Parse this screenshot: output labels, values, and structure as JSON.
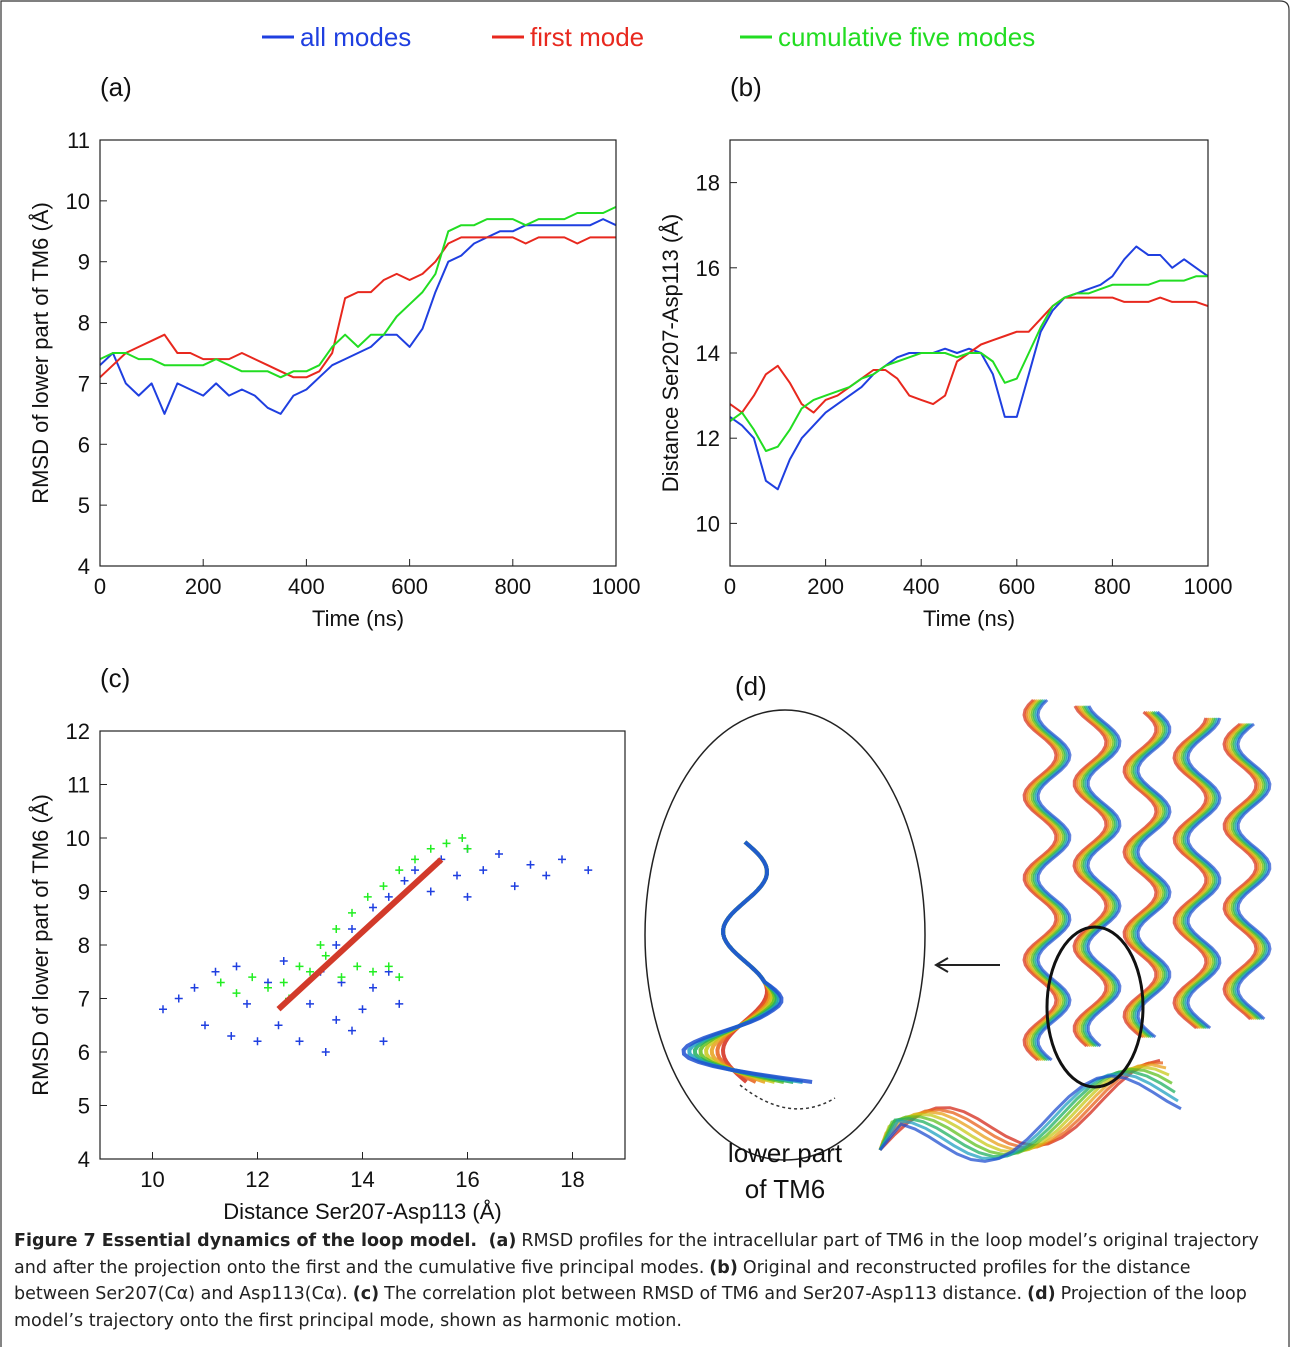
{
  "chart_data": [
    {
      "type": "line",
      "label": "(a)",
      "x_label": "Time (ns)",
      "y_label": "RMSD of lower part of TM6 (Å)",
      "x": [
        0,
        25,
        50,
        75,
        100,
        125,
        150,
        175,
        200,
        225,
        250,
        275,
        300,
        325,
        350,
        375,
        400,
        425,
        450,
        475,
        500,
        525,
        550,
        575,
        600,
        625,
        650,
        675,
        700,
        725,
        750,
        775,
        800,
        825,
        850,
        875,
        900,
        925,
        950,
        975,
        1000
      ],
      "xlim": [
        0,
        1000
      ],
      "xticks": [
        0,
        200,
        400,
        600,
        800,
        1000
      ],
      "ylim": [
        4,
        11
      ],
      "yticks": [
        4,
        5,
        6,
        7,
        8,
        9,
        10,
        11
      ],
      "series": [
        {
          "name": "all modes",
          "color": "#1f3fe0",
          "values": [
            7.3,
            7.5,
            7.0,
            6.8,
            7.0,
            6.5,
            7.0,
            6.9,
            6.8,
            7.0,
            6.8,
            6.9,
            6.8,
            6.6,
            6.5,
            6.8,
            6.9,
            7.1,
            7.3,
            7.4,
            7.5,
            7.6,
            7.8,
            7.8,
            7.6,
            7.9,
            8.5,
            9.0,
            9.1,
            9.3,
            9.4,
            9.5,
            9.5,
            9.6,
            9.6,
            9.6,
            9.6,
            9.6,
            9.6,
            9.7,
            9.6
          ]
        },
        {
          "name": "first mode",
          "color": "#e8281e",
          "values": [
            7.1,
            7.3,
            7.5,
            7.6,
            7.7,
            7.8,
            7.5,
            7.5,
            7.4,
            7.4,
            7.4,
            7.5,
            7.4,
            7.3,
            7.2,
            7.1,
            7.1,
            7.2,
            7.5,
            8.4,
            8.5,
            8.5,
            8.7,
            8.8,
            8.7,
            8.8,
            9.0,
            9.3,
            9.4,
            9.4,
            9.4,
            9.4,
            9.4,
            9.3,
            9.4,
            9.4,
            9.4,
            9.3,
            9.4,
            9.4,
            9.4
          ]
        },
        {
          "name": "cumulative five modes",
          "color": "#22dd22",
          "values": [
            7.4,
            7.5,
            7.5,
            7.4,
            7.4,
            7.3,
            7.3,
            7.3,
            7.3,
            7.4,
            7.3,
            7.2,
            7.2,
            7.2,
            7.1,
            7.2,
            7.2,
            7.3,
            7.6,
            7.8,
            7.6,
            7.8,
            7.8,
            8.1,
            8.3,
            8.5,
            8.8,
            9.5,
            9.6,
            9.6,
            9.7,
            9.7,
            9.7,
            9.6,
            9.7,
            9.7,
            9.7,
            9.8,
            9.8,
            9.8,
            9.9
          ]
        }
      ]
    },
    {
      "type": "line",
      "label": "(b)",
      "x_label": "Time (ns)",
      "y_label": "Distance Ser207-Asp113 (Å)",
      "x": [
        0,
        25,
        50,
        75,
        100,
        125,
        150,
        175,
        200,
        225,
        250,
        275,
        300,
        325,
        350,
        375,
        400,
        425,
        450,
        475,
        500,
        525,
        550,
        575,
        600,
        625,
        650,
        675,
        700,
        725,
        750,
        775,
        800,
        825,
        850,
        875,
        900,
        925,
        950,
        975,
        1000
      ],
      "xlim": [
        0,
        1000
      ],
      "xticks": [
        0,
        200,
        400,
        600,
        800,
        1000
      ],
      "ylim": [
        9,
        19
      ],
      "yticks": [
        10,
        12,
        14,
        16,
        18
      ],
      "series": [
        {
          "color": "#1f3fe0",
          "values": [
            12.5,
            12.3,
            12.0,
            11.0,
            10.8,
            11.5,
            12.0,
            12.3,
            12.6,
            12.8,
            13.0,
            13.2,
            13.5,
            13.7,
            13.9,
            14.0,
            14.0,
            14.0,
            14.1,
            14.0,
            14.1,
            14.0,
            13.5,
            12.5,
            12.5,
            13.5,
            14.5,
            15.0,
            15.3,
            15.4,
            15.5,
            15.6,
            15.8,
            16.2,
            16.5,
            16.3,
            16.3,
            16.0,
            16.2,
            16.0,
            15.8
          ]
        },
        {
          "color": "#e8281e",
          "values": [
            12.8,
            12.6,
            13.0,
            13.5,
            13.7,
            13.3,
            12.8,
            12.6,
            12.9,
            13.0,
            13.2,
            13.4,
            13.6,
            13.6,
            13.4,
            13.0,
            12.9,
            12.8,
            13.0,
            13.8,
            14.0,
            14.2,
            14.3,
            14.4,
            14.5,
            14.5,
            14.8,
            15.1,
            15.3,
            15.3,
            15.3,
            15.3,
            15.3,
            15.2,
            15.2,
            15.2,
            15.3,
            15.2,
            15.2,
            15.2,
            15.1
          ]
        },
        {
          "color": "#22dd22",
          "values": [
            12.4,
            12.6,
            12.2,
            11.7,
            11.8,
            12.2,
            12.7,
            12.9,
            13.0,
            13.1,
            13.2,
            13.4,
            13.5,
            13.7,
            13.8,
            13.9,
            14.0,
            14.0,
            14.0,
            13.9,
            14.0,
            14.0,
            13.8,
            13.3,
            13.4,
            14.0,
            14.6,
            15.1,
            15.3,
            15.4,
            15.4,
            15.5,
            15.6,
            15.6,
            15.6,
            15.6,
            15.7,
            15.7,
            15.7,
            15.8,
            15.8
          ]
        }
      ]
    },
    {
      "type": "scatter",
      "label": "(c)",
      "x_label": "Distance Ser207-Asp113 (Å)",
      "y_label": "RMSD of lower part of TM6 (Å)",
      "xlim": [
        9,
        19
      ],
      "xticks": [
        10,
        12,
        14,
        16,
        18
      ],
      "ylim": [
        4,
        12
      ],
      "yticks": [
        4,
        5,
        6,
        7,
        8,
        9,
        10,
        11,
        12
      ],
      "series": [
        {
          "mode": "markers",
          "color": "#1f3fe0",
          "x": [
            10.2,
            10.5,
            10.8,
            11,
            11.2,
            11.5,
            11.6,
            11.8,
            12,
            12.2,
            12.4,
            12.5,
            12.8,
            13,
            13.2,
            13.3,
            13.5,
            13.6,
            13.8,
            14,
            14.2,
            14.4,
            14.5,
            14.7,
            13.5,
            13.8,
            14.2,
            14.5,
            14.8,
            15.0,
            15.3,
            15.5,
            15.8,
            16.0,
            16.3,
            16.6,
            16.9,
            17.2,
            17.5,
            17.8,
            18.3,
            16.0
          ],
          "values": [
            6.8,
            7.0,
            7.2,
            6.5,
            7.5,
            6.3,
            7.6,
            6.9,
            6.2,
            7.3,
            6.5,
            7.7,
            6.2,
            6.9,
            7.5,
            6.0,
            6.6,
            7.3,
            6.4,
            6.8,
            7.2,
            6.2,
            7.5,
            6.9,
            8.0,
            8.3,
            8.7,
            8.9,
            9.2,
            9.4,
            9.0,
            9.6,
            9.3,
            9.8,
            9.4,
            9.7,
            9.1,
            9.5,
            9.3,
            9.6,
            9.4,
            8.9
          ]
        },
        {
          "mode": "markers",
          "color": "#22ee22",
          "x": [
            11.3,
            11.6,
            11.9,
            12.2,
            12.5,
            12.8,
            13.0,
            13.3,
            13.6,
            13.9,
            14.2,
            14.5,
            14.7,
            13.2,
            13.5,
            13.8,
            14.1,
            14.4,
            14.7,
            15.0,
            15.3,
            15.6,
            15.9,
            16.0,
            12.6
          ],
          "values": [
            7.3,
            7.1,
            7.4,
            7.2,
            7.3,
            7.6,
            7.5,
            7.8,
            7.4,
            7.6,
            7.5,
            7.6,
            7.4,
            8.0,
            8.3,
            8.6,
            8.9,
            9.1,
            9.4,
            9.6,
            9.8,
            9.9,
            10.0,
            9.8,
            7.0
          ]
        },
        {
          "mode": "line",
          "color": "#d23a2a",
          "x": [
            12.4,
            15.5
          ],
          "values": [
            6.8,
            9.6
          ]
        }
      ]
    }
  ],
  "panel_d": {
    "label": "(d)",
    "annotation": [
      "lower part",
      "of TM6"
    ]
  },
  "caption": {
    "title": "Figure 7 Essential dynamics of the loop model.",
    "parts": [
      {
        "label": "(a)",
        "text": "RMSD profiles for the intracellular part of TM6 in the loop model’s original trajectory and after the projection onto the first and the cumulative five principal modes."
      },
      {
        "label": "(b)",
        "text": "Original and reconstructed profiles for the distance between Ser207(Cα) and Asp113(Cα)."
      },
      {
        "label": "(c)",
        "text": "The correlation plot between RMSD of TM6 and Ser207-Asp113 distance."
      },
      {
        "label": "(d)",
        "text": "Projection of the loop model’s trajectory onto the first principal mode, shown as harmonic motion."
      }
    ]
  }
}
